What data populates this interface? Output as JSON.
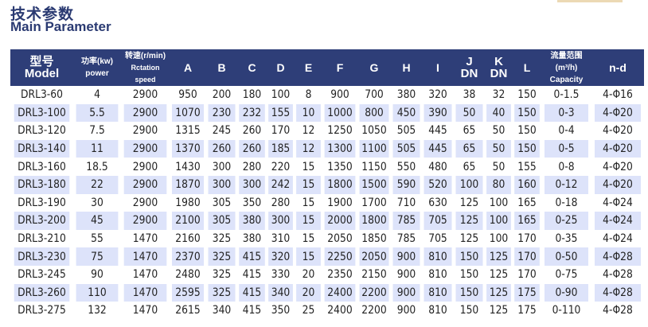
{
  "title_cn": "技术参数",
  "title_en": "Main Parameter",
  "headers": {
    "model_cn": "型号",
    "model_en": "Model",
    "power_cn": "功率(kw)",
    "power_en": "power",
    "speed_cn": "转速(r/min)",
    "speed_en": "Rctation speed",
    "A": "A",
    "B": "B",
    "C": "C",
    "D": "D",
    "E": "E",
    "F": "F",
    "G": "G",
    "H": "H",
    "I": "I",
    "J": "J",
    "J_sub": "DN",
    "K": "K",
    "K_sub": "DN",
    "L": "L",
    "cap_cn": "流量范围(m³/h)",
    "cap_en": "Capacity",
    "nd": "n-d"
  },
  "rows": [
    [
      "DRL3-60",
      "4",
      "2900",
      "950",
      "200",
      "180",
      "100",
      "8",
      "900",
      "700",
      "380",
      "320",
      "38",
      "32",
      "150",
      "0-1.5",
      "4-Φ16"
    ],
    [
      "DRL3-100",
      "5.5",
      "2900",
      "1070",
      "230",
      "232",
      "155",
      "10",
      "1000",
      "800",
      "450",
      "390",
      "50",
      "40",
      "150",
      "0-3",
      "4-Φ20"
    ],
    [
      "DRL3-120",
      "7.5",
      "2900",
      "1315",
      "245",
      "260",
      "170",
      "12",
      "1250",
      "1050",
      "505",
      "445",
      "65",
      "50",
      "150",
      "0-4",
      "4-Φ20"
    ],
    [
      "DRL3-140",
      "11",
      "2900",
      "1370",
      "260",
      "260",
      "185",
      "12",
      "1300",
      "1100",
      "505",
      "445",
      "65",
      "50",
      "150",
      "0-5",
      "4-Φ20"
    ],
    [
      "DRL3-160",
      "18.5",
      "2900",
      "1430",
      "300",
      "280",
      "220",
      "15",
      "1350",
      "1150",
      "550",
      "480",
      "65",
      "50",
      "155",
      "0-8",
      "4-Φ20"
    ],
    [
      "DRL3-180",
      "22",
      "2900",
      "1870",
      "300",
      "300",
      "242",
      "15",
      "1800",
      "1500",
      "590",
      "520",
      "100",
      "80",
      "160",
      "0-12",
      "4-Φ20"
    ],
    [
      "DRL3-190",
      "30",
      "2900",
      "1980",
      "305",
      "350",
      "280",
      "15",
      "1900",
      "1700",
      "710",
      "630",
      "125",
      "100",
      "165",
      "0-18",
      "4-Φ24"
    ],
    [
      "DRL3-200",
      "45",
      "2900",
      "2100",
      "305",
      "380",
      "300",
      "15",
      "2000",
      "1800",
      "785",
      "705",
      "125",
      "100",
      "165",
      "0-25",
      "4-Φ24"
    ],
    [
      "DRL3-210",
      "55",
      "1470",
      "2160",
      "325",
      "380",
      "310",
      "15",
      "2050",
      "1850",
      "785",
      "705",
      "125",
      "100",
      "170",
      "0-35",
      "4-Φ24"
    ],
    [
      "DRL3-230",
      "75",
      "1470",
      "2370",
      "325",
      "415",
      "320",
      "15",
      "2250",
      "2050",
      "900",
      "810",
      "150",
      "125",
      "170",
      "0-50",
      "4-Φ28"
    ],
    [
      "DRL3-245",
      "90",
      "1470",
      "2480",
      "325",
      "415",
      "330",
      "20",
      "2350",
      "2150",
      "900",
      "810",
      "150",
      "125",
      "170",
      "0-75",
      "4-Φ28"
    ],
    [
      "DRL3-260",
      "110",
      "1470",
      "2595",
      "325",
      "415",
      "340",
      "20",
      "2400",
      "2200",
      "900",
      "810",
      "150",
      "125",
      "175",
      "0-90",
      "4-Φ28"
    ],
    [
      "DRL3-275",
      "132",
      "1470",
      "2615",
      "340",
      "415",
      "350",
      "25",
      "2400",
      "2200",
      "900",
      "810",
      "150",
      "125",
      "175",
      "0-110",
      "4-Φ28"
    ]
  ]
}
